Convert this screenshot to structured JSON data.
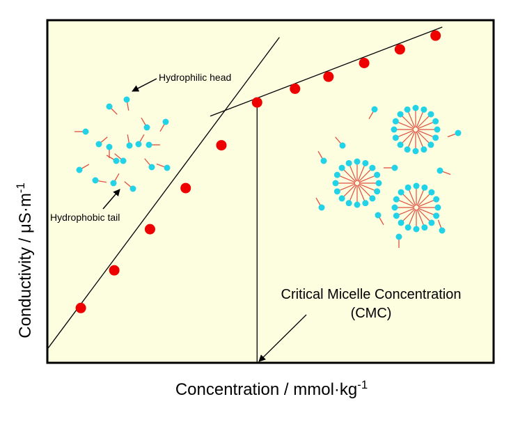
{
  "chart_data": {
    "type": "scatter",
    "xlabel": "Concentration / mmol·kg",
    "xlabel_sup": "-1",
    "ylabel": "Conductivity / μS·m",
    "ylabel_sup": "-1",
    "xlim": [
      0,
      100
    ],
    "ylim": [
      0,
      100
    ],
    "grid": false,
    "background": "#fdfde0",
    "series": [
      {
        "color": "#ee0000",
        "points": [
          {
            "x": 7.5,
            "y": 16
          },
          {
            "x": 15,
            "y": 27
          },
          {
            "x": 23,
            "y": 39
          },
          {
            "x": 31,
            "y": 51
          },
          {
            "x": 39,
            "y": 63.5
          },
          {
            "x": 47,
            "y": 76
          },
          {
            "x": 55.5,
            "y": 80
          },
          {
            "x": 63,
            "y": 83.5
          },
          {
            "x": 71,
            "y": 87.5
          },
          {
            "x": 79,
            "y": 91.5
          },
          {
            "x": 87,
            "y": 95.5
          }
        ]
      }
    ],
    "fit_lines": [
      {
        "from": {
          "x": 0,
          "y": 4
        },
        "to": {
          "x": 52,
          "y": 95
        }
      },
      {
        "from": {
          "x": 36.5,
          "y": 72
        },
        "to": {
          "x": 88.5,
          "y": 98
        }
      }
    ],
    "cmc_x": 47,
    "annotations": {
      "head": "Hydrophilic head",
      "tail": "Hydrophobic tail",
      "cmc_line1": "Critical Micelle Concentration",
      "cmc_line2": "(CMC)"
    },
    "colors": {
      "head": "#22d3e8",
      "tail": "#e05040",
      "point": "#ee0000"
    }
  }
}
